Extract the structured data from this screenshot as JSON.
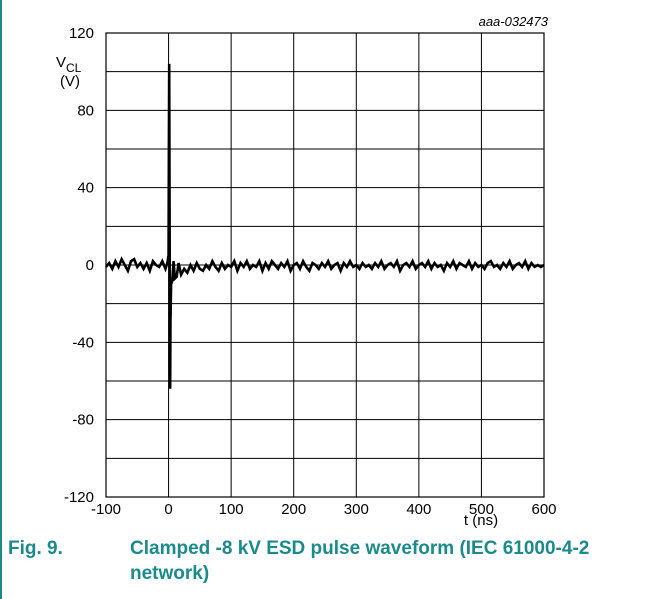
{
  "figure": {
    "number": "Fig. 9.",
    "title": "Clamped -8 kV ESD pulse waveform (IEC 61000-4-2 network)",
    "doc_id": "aaa-032473"
  },
  "colors": {
    "caption": "#1b8a8c",
    "grid": "#000000",
    "trace": "#000000"
  },
  "chart_data": {
    "type": "line",
    "title": "",
    "xlabel": "t (ns)",
    "ylabel_main": "V",
    "ylabel_sub": "CL",
    "ylabel_unit": "(V)",
    "xlim": [
      -100,
      600
    ],
    "ylim": [
      -120,
      120
    ],
    "x_ticks": [
      "-100",
      "0",
      "100",
      "200",
      "300",
      "400",
      "500",
      "600"
    ],
    "y_ticks": [
      "120",
      "80",
      "40",
      "0",
      "-40",
      "-80",
      "-120"
    ],
    "grid": true,
    "series": [
      {
        "values": [
          [
            -100,
            -1
          ],
          [
            -95,
            1
          ],
          [
            -90,
            -2
          ],
          [
            -85,
            2
          ],
          [
            -80,
            -1
          ],
          [
            -75,
            3
          ],
          [
            -70,
            0
          ],
          [
            -65,
            -3
          ],
          [
            -60,
            2
          ],
          [
            -55,
            3
          ],
          [
            -50,
            -1
          ],
          [
            -45,
            1
          ],
          [
            -40,
            -2
          ],
          [
            -35,
            1
          ],
          [
            -30,
            -3
          ],
          [
            -25,
            2
          ],
          [
            -20,
            0
          ],
          [
            -15,
            -1
          ],
          [
            -10,
            2
          ],
          [
            -5,
            -2
          ],
          [
            -2,
            1
          ],
          [
            0,
            5
          ],
          [
            0.5,
            60
          ],
          [
            1,
            104
          ],
          [
            1.5,
            40
          ],
          [
            2,
            -20
          ],
          [
            2.5,
            -64
          ],
          [
            3,
            -30
          ],
          [
            4,
            -10
          ],
          [
            6,
            -8
          ],
          [
            8,
            2
          ],
          [
            10,
            -7
          ],
          [
            13,
            -6
          ],
          [
            16,
            1
          ],
          [
            20,
            -5
          ],
          [
            25,
            -2
          ],
          [
            30,
            -4
          ],
          [
            35,
            0
          ],
          [
            40,
            -3
          ],
          [
            45,
            1
          ],
          [
            50,
            -2
          ],
          [
            55,
            -3
          ],
          [
            60,
            0
          ],
          [
            65,
            -2
          ],
          [
            70,
            2
          ],
          [
            75,
            -1
          ],
          [
            80,
            -3
          ],
          [
            85,
            1
          ],
          [
            90,
            -2
          ],
          [
            95,
            0
          ],
          [
            100,
            -1
          ],
          [
            105,
            2
          ],
          [
            110,
            -3
          ],
          [
            115,
            1
          ],
          [
            120,
            -1
          ],
          [
            125,
            2
          ],
          [
            130,
            -2
          ],
          [
            135,
            0
          ],
          [
            140,
            -1
          ],
          [
            145,
            2
          ],
          [
            150,
            -3
          ],
          [
            155,
            1
          ],
          [
            160,
            -2
          ],
          [
            165,
            2
          ],
          [
            170,
            0
          ],
          [
            175,
            -2
          ],
          [
            180,
            1
          ],
          [
            185,
            -1
          ],
          [
            190,
            2
          ],
          [
            195,
            -3
          ],
          [
            200,
            0
          ],
          [
            205,
            1
          ],
          [
            210,
            -2
          ],
          [
            215,
            2
          ],
          [
            220,
            -1
          ],
          [
            225,
            -3
          ],
          [
            230,
            1
          ],
          [
            235,
            0
          ],
          [
            240,
            -2
          ],
          [
            245,
            1
          ],
          [
            250,
            -1
          ],
          [
            255,
            2
          ],
          [
            260,
            -2
          ],
          [
            265,
            0
          ],
          [
            270,
            1
          ],
          [
            275,
            -3
          ],
          [
            280,
            1
          ],
          [
            285,
            -1
          ],
          [
            290,
            2
          ],
          [
            295,
            -1
          ],
          [
            300,
            0
          ],
          [
            305,
            -2
          ],
          [
            310,
            1
          ],
          [
            315,
            -1
          ],
          [
            320,
            0
          ],
          [
            325,
            -2
          ],
          [
            330,
            1
          ],
          [
            335,
            -1
          ],
          [
            340,
            2
          ],
          [
            345,
            -2
          ],
          [
            350,
            0
          ],
          [
            355,
            1
          ],
          [
            360,
            -1
          ],
          [
            365,
            2
          ],
          [
            370,
            -3
          ],
          [
            375,
            0
          ],
          [
            380,
            1
          ],
          [
            385,
            -1
          ],
          [
            390,
            2
          ],
          [
            395,
            -2
          ],
          [
            400,
            0
          ],
          [
            405,
            1
          ],
          [
            410,
            -1
          ],
          [
            415,
            2
          ],
          [
            420,
            -2
          ],
          [
            425,
            1
          ],
          [
            430,
            -1
          ],
          [
            435,
            0
          ],
          [
            440,
            -3
          ],
          [
            445,
            1
          ],
          [
            450,
            -1
          ],
          [
            455,
            2
          ],
          [
            460,
            -2
          ],
          [
            465,
            1
          ],
          [
            470,
            0
          ],
          [
            475,
            -1
          ],
          [
            480,
            2
          ],
          [
            485,
            -2
          ],
          [
            490,
            1
          ],
          [
            495,
            -1
          ],
          [
            500,
            0
          ],
          [
            505,
            -2
          ],
          [
            510,
            1
          ],
          [
            515,
            2
          ],
          [
            520,
            -1
          ],
          [
            525,
            0
          ],
          [
            530,
            -2
          ],
          [
            535,
            1
          ],
          [
            540,
            -1
          ],
          [
            545,
            2
          ],
          [
            550,
            -2
          ],
          [
            555,
            0
          ],
          [
            560,
            1
          ],
          [
            565,
            -1
          ],
          [
            570,
            2
          ],
          [
            575,
            -2
          ],
          [
            580,
            1
          ],
          [
            585,
            -1
          ],
          [
            590,
            0
          ],
          [
            595,
            -1
          ],
          [
            600,
            0
          ]
        ]
      }
    ]
  }
}
